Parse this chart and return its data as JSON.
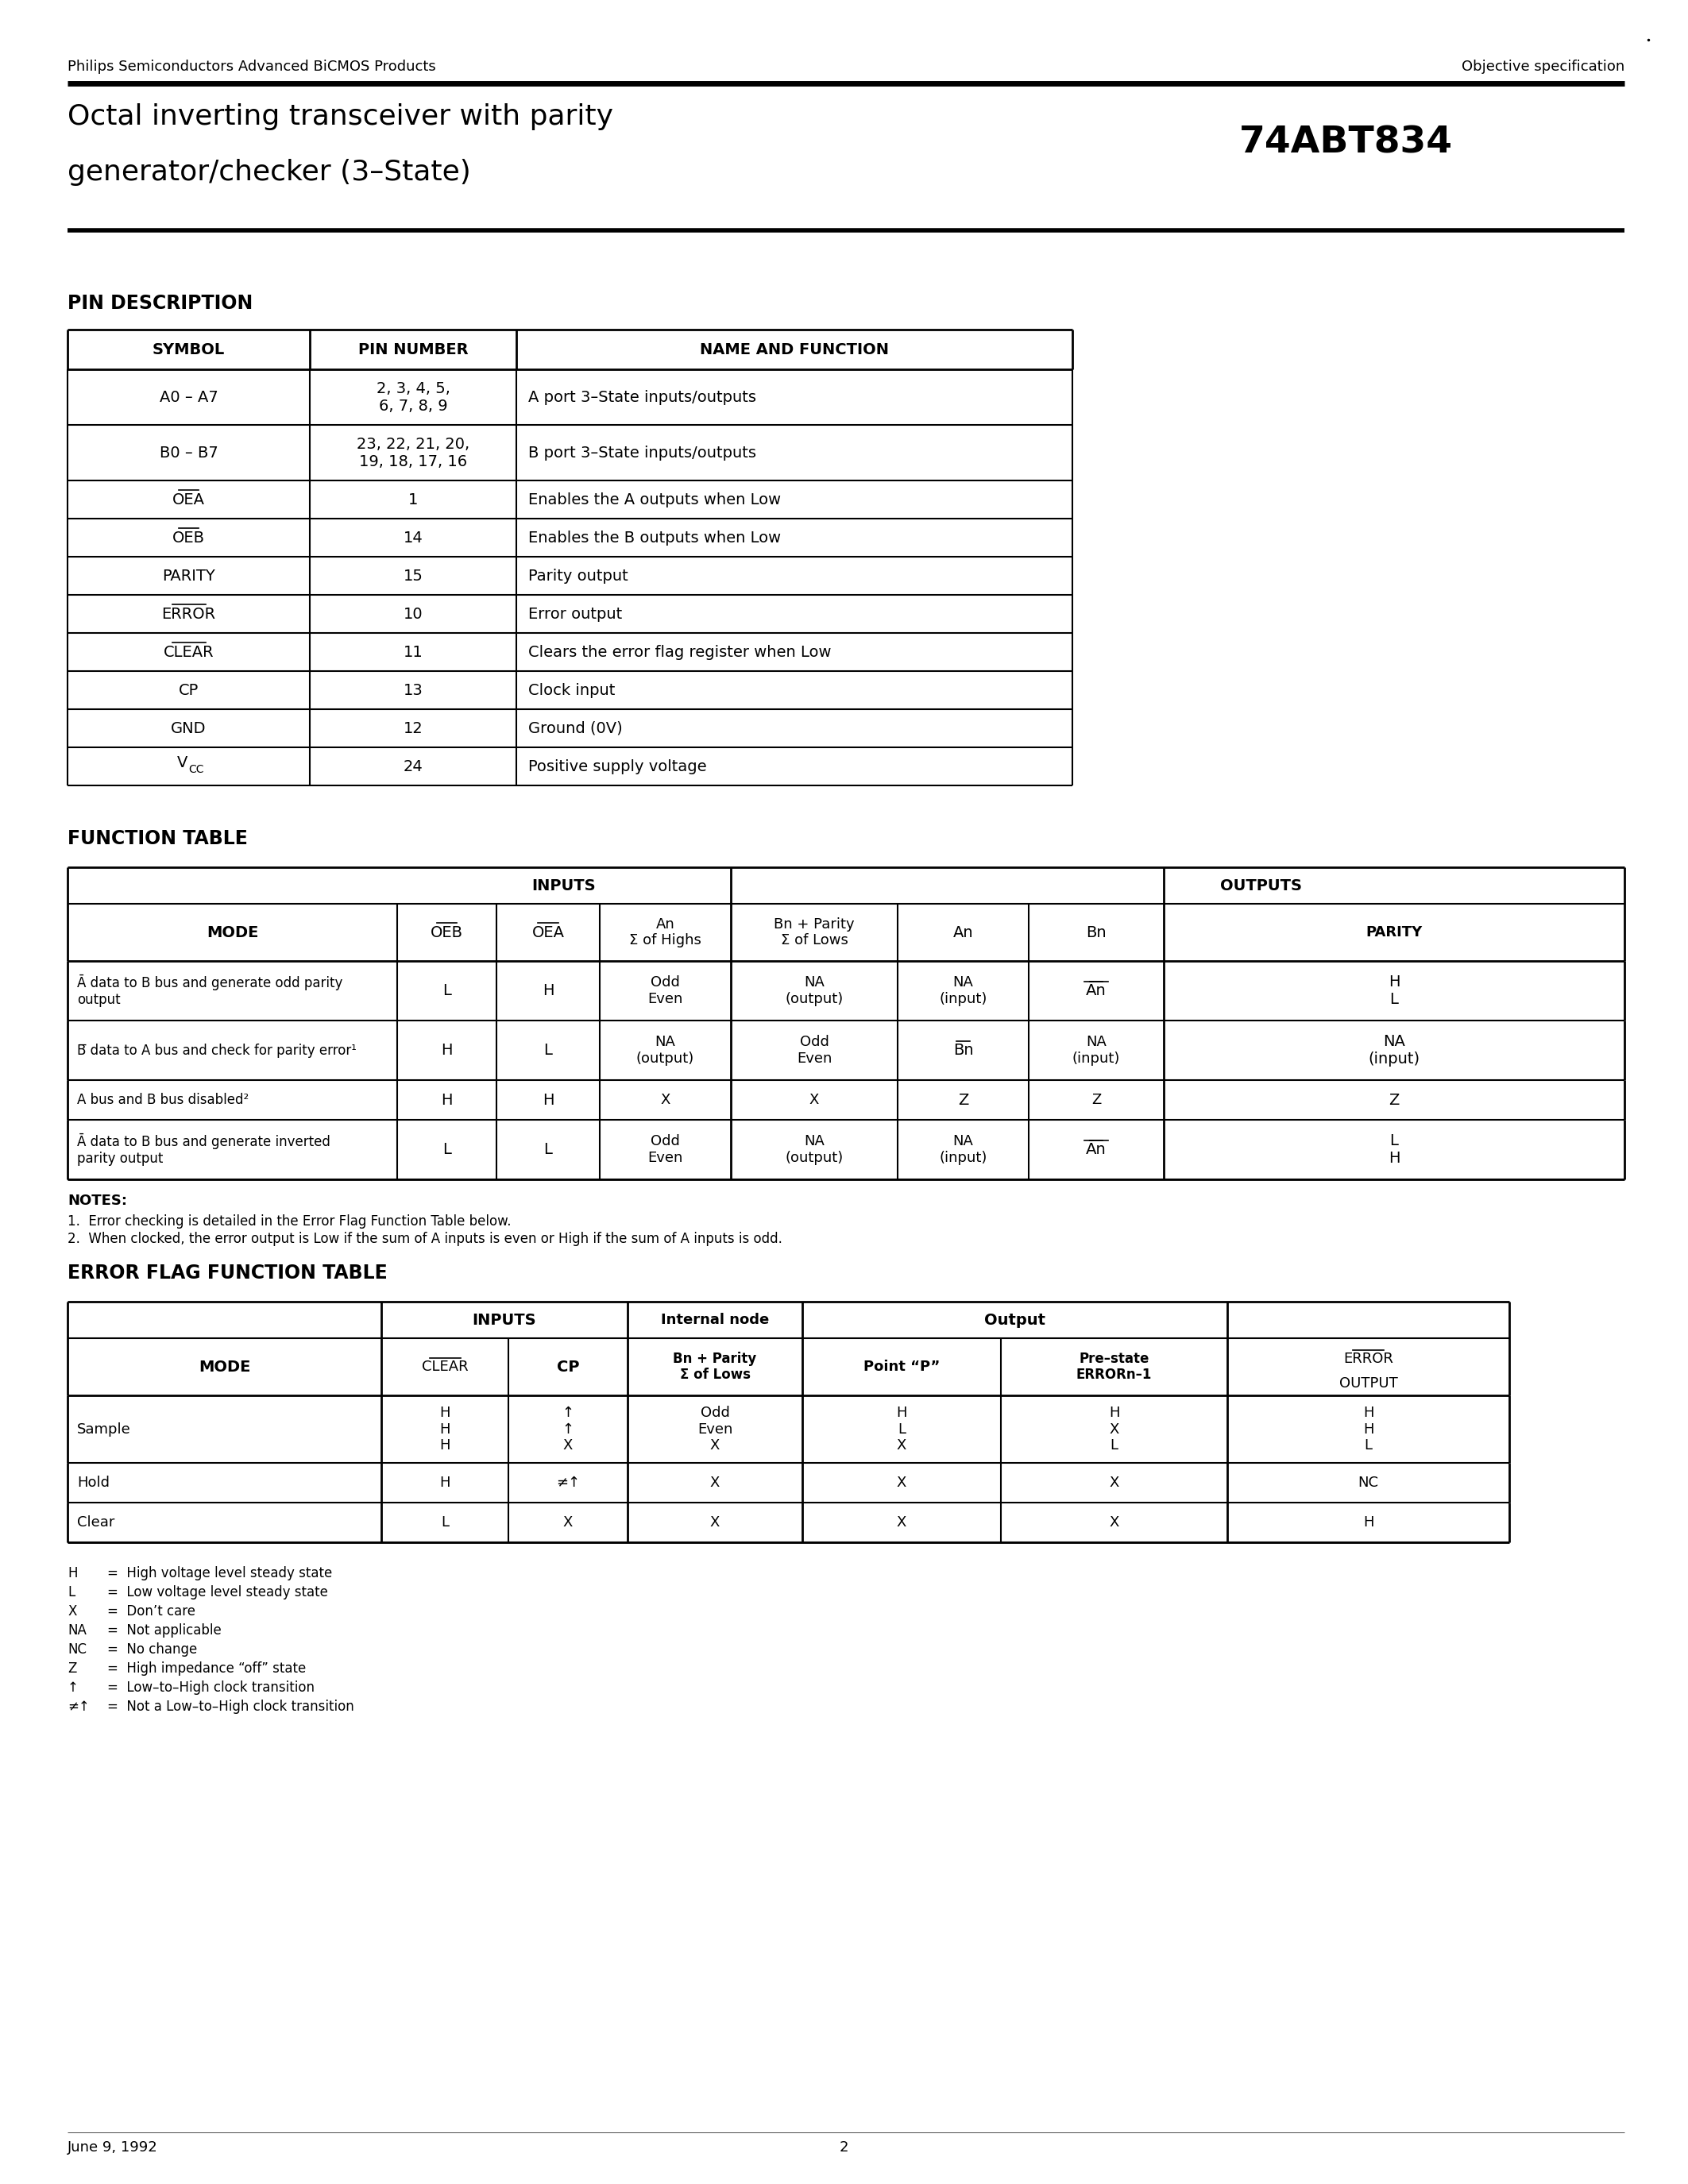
{
  "header_left": "Philips Semiconductors Advanced BiCMOS Products",
  "header_right": "Objective specification",
  "title_line1": "Octal inverting transceiver with parity",
  "title_line2": "generator/checker (3–State)",
  "part_number": "74ABT834",
  "footer_left": "June 9, 1992",
  "footer_center": "2",
  "bg_color": "#ffffff"
}
